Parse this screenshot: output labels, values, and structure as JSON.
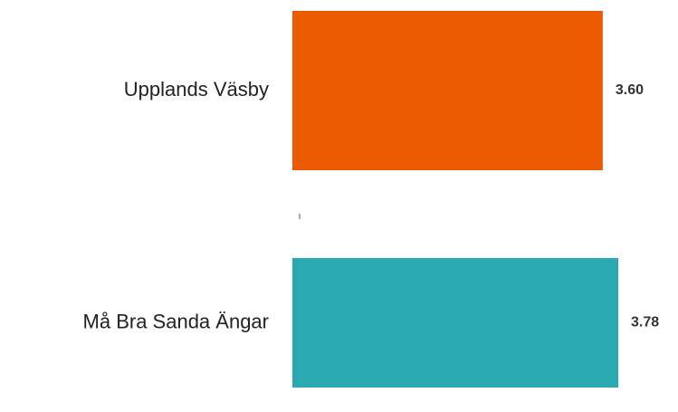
{
  "chart_data": {
    "type": "barh",
    "categories": [
      "Upplands Väsby",
      "Må Bra Sanda Ängar"
    ],
    "values": [
      3.6,
      3.78
    ],
    "value_labels": [
      "3.60",
      "3.78"
    ],
    "colors": [
      "#eb5a00",
      "#2aa9b0"
    ],
    "xlim": [
      0,
      4
    ]
  }
}
